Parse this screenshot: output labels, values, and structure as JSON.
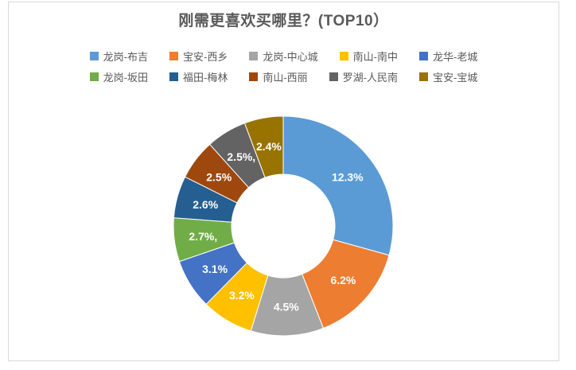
{
  "frame": {
    "border_color": "#D9D9D9",
    "background": "#FFFFFF"
  },
  "title": {
    "text": "刚需更喜欢买哪里？(TOP10）",
    "color": "#595959"
  },
  "legend": {
    "position": "top",
    "text_color": "#595959",
    "rows": [
      [
        0,
        1,
        2,
        3,
        4
      ],
      [
        5,
        6,
        7,
        8,
        9
      ]
    ]
  },
  "chart_data": {
    "type": "pie",
    "subtype": "donut",
    "title": "刚需更喜欢买哪里？(TOP10）",
    "legend_position": "top",
    "direction": "clockwise",
    "start_angle_deg": 0,
    "hole_ratio": 0.47,
    "categories": [
      "龙岗-布吉",
      "宝安-西乡",
      "龙岗-中心城",
      "南山-南中",
      "龙华-老城",
      "龙岗-坂田",
      "福田-梅林",
      "南山-西丽",
      "罗湖-人民南",
      "宝安-宝城"
    ],
    "values": [
      12.3,
      6.2,
      4.5,
      3.2,
      3.1,
      2.7,
      2.6,
      2.5,
      2.5,
      2.4
    ],
    "data_labels": [
      "12.3%",
      "6.2%",
      "4.5%",
      "3.2%",
      "3.1%",
      "2.7%,",
      "2.6%",
      "2.5%",
      "2.5%,",
      "2.4%"
    ],
    "colors": [
      "#5B9BD5",
      "#ED7D31",
      "#A5A5A5",
      "#FFC000",
      "#4472C4",
      "#70AD47",
      "#255E91",
      "#9E480E",
      "#636363",
      "#997300"
    ],
    "label_color": "#FFFFFF",
    "slice_border_color": "#FFFFFF"
  }
}
